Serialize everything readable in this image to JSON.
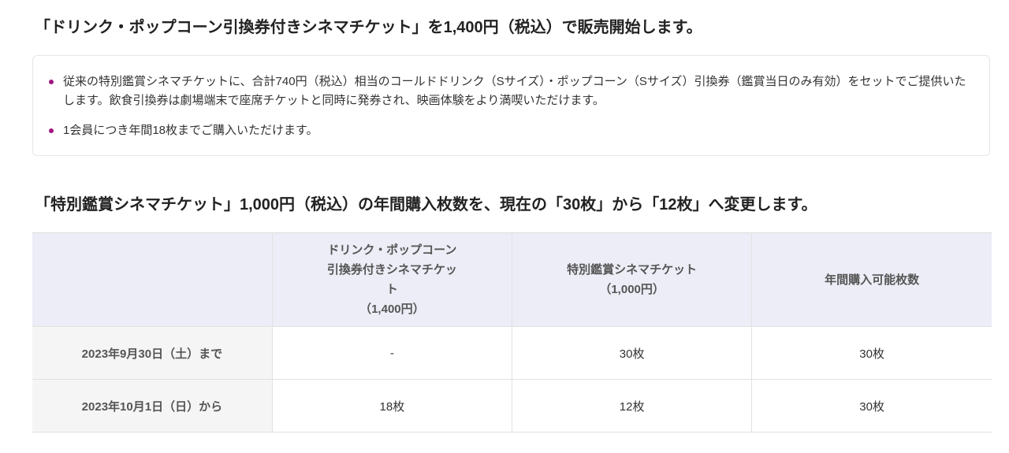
{
  "section1": {
    "title": "「ドリンク・ポップコーン引換券付きシネマチケット」を1,400円（税込）で販売開始します。",
    "bullets": [
      "従来の特別鑑賞シネマチケットに、合計740円（税込）相当のコールドドリンク（Sサイズ）・ポップコーン（Sサイズ）引換券（鑑賞当日のみ有効）をセットでご提供いたします。飲食引換券は劇場端末で座席チケットと同時に発券され、映画体験をより満喫いただけます。",
      "1会員につき年間18枚までご購入いただけます。"
    ],
    "bullet_color": "#a0167f"
  },
  "section2": {
    "title": "「特別鑑賞シネマチケット」1,000円（税込）の年間購入枚数を、現在の「30枚」から「12枚」へ変更します。",
    "table": {
      "headers": [
        "",
        "ドリンク・ポップコーン引換券付きシネマチケット",
        "特別鑑賞シネマチケット",
        "年間購入可能枚数"
      ],
      "header_subs": [
        "",
        "（1,400円）",
        "（1,000円）",
        ""
      ],
      "rows": [
        {
          "label": "2023年9月30日（土）まで",
          "cells": [
            "-",
            "30枚",
            "30枚"
          ]
        },
        {
          "label": "2023年10月1日（日）から",
          "cells": [
            "18枚",
            "12枚",
            "30枚"
          ]
        }
      ]
    }
  }
}
